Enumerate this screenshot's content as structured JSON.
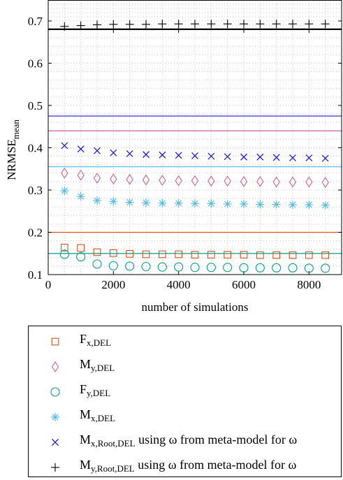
{
  "chart_data": {
    "type": "scatter",
    "xlabel": "number of simulations",
    "ylabel_main": "NRMSE",
    "ylabel_sub": "mean",
    "xlim": [
      0,
      9000
    ],
    "xticks": [
      0,
      2000,
      4000,
      6000,
      8000
    ],
    "xtick_labels": [
      "0",
      "2000",
      "4000",
      "6000",
      "8000"
    ],
    "lower_ylim": [
      0.1,
      0.68
    ],
    "lower_yticks": [
      0.1,
      0.2,
      0.3,
      0.4,
      0.5,
      0.6
    ],
    "lower_ytick_labels": [
      "0.1",
      "0.2",
      "0.3",
      "0.4",
      "0.5",
      "0.6"
    ],
    "upper_ylim": [
      0.68,
      0.75
    ],
    "upper_yticks": [
      0.7
    ],
    "upper_ytick_labels": [
      "0.7"
    ],
    "grid": true,
    "legend_placement": "below",
    "x": [
      500,
      1000,
      1500,
      2000,
      2500,
      3000,
      3500,
      4000,
      4500,
      5000,
      5500,
      6000,
      6500,
      7000,
      7500,
      8000,
      8500
    ],
    "series": [
      {
        "name_main": "F",
        "name_sub": "x,DEL",
        "marker": "square",
        "color": "#d95319",
        "hline": 0.2,
        "values": [
          0.164,
          0.163,
          0.153,
          0.151,
          0.149,
          0.148,
          0.148,
          0.148,
          0.147,
          0.147,
          0.147,
          0.147,
          0.146,
          0.146,
          0.146,
          0.146,
          0.146
        ]
      },
      {
        "name_main": "M",
        "name_sub": "y,DEL",
        "marker": "diamond",
        "color": "#c8639a",
        "hline": 0.44,
        "values": [
          0.34,
          0.335,
          0.328,
          0.326,
          0.325,
          0.324,
          0.323,
          0.322,
          0.322,
          0.321,
          0.321,
          0.32,
          0.32,
          0.319,
          0.319,
          0.319,
          0.318
        ]
      },
      {
        "name_main": "F",
        "name_sub": "y,DEL",
        "marker": "circle",
        "color": "#00a087",
        "hline": 0.15,
        "values": [
          0.148,
          0.142,
          0.125,
          0.121,
          0.12,
          0.119,
          0.118,
          0.118,
          0.117,
          0.117,
          0.117,
          0.116,
          0.116,
          0.116,
          0.116,
          0.115,
          0.115
        ]
      },
      {
        "name_main": "M",
        "name_sub": "x,DEL",
        "marker": "asterisk",
        "color": "#4db8e8",
        "hline": 0.355,
        "values": [
          0.298,
          0.285,
          0.275,
          0.273,
          0.271,
          0.27,
          0.269,
          0.269,
          0.268,
          0.268,
          0.267,
          0.267,
          0.266,
          0.266,
          0.265,
          0.265,
          0.264
        ]
      },
      {
        "name_main": "M",
        "name_sub": "x,Root,DEL",
        "name_suffix": " using ω from meta-model for ω",
        "marker": "x",
        "color": "#1f1fd0",
        "hline": 0.475,
        "values": [
          0.405,
          0.397,
          0.393,
          0.388,
          0.386,
          0.384,
          0.383,
          0.382,
          0.381,
          0.38,
          0.379,
          0.378,
          0.378,
          0.377,
          0.376,
          0.376,
          0.375
        ]
      },
      {
        "name_main": "M",
        "name_sub": "y,Root,DEL",
        "name_suffix": " using ω from meta-model for ω",
        "marker": "plus",
        "color": "#000000",
        "hline": 0.681,
        "values": [
          0.687,
          0.689,
          0.691,
          0.692,
          0.692,
          0.692,
          0.693,
          0.693,
          0.693,
          0.693,
          0.693,
          0.693,
          0.693,
          0.693,
          0.693,
          0.693,
          0.693
        ]
      }
    ]
  }
}
